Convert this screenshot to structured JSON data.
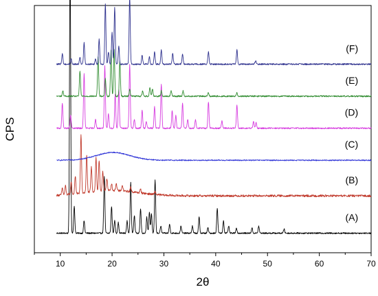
{
  "chart_data": {
    "type": "line",
    "title": "",
    "xlabel": "2θ",
    "ylabel": "CPS",
    "xlim": [
      5,
      70
    ],
    "xticks": [
      10,
      20,
      30,
      40,
      50,
      60,
      70
    ],
    "yticks_shown": false,
    "grid": false,
    "legend": "none",
    "series": [
      {
        "name": "(A)",
        "color": "#000000",
        "baseline": 0.0,
        "noise": 0.04,
        "peaks": [
          [
            11.9,
            8.0
          ],
          [
            12.7,
            0.75
          ],
          [
            14.6,
            0.35
          ],
          [
            18.5,
            1.6
          ],
          [
            19.9,
            0.75
          ],
          [
            20.5,
            0.35
          ],
          [
            21.2,
            0.3
          ],
          [
            22.9,
            0.35
          ],
          [
            23.6,
            1.45
          ],
          [
            24.3,
            0.5
          ],
          [
            25.5,
            0.7
          ],
          [
            26.7,
            0.45
          ],
          [
            27.2,
            0.6
          ],
          [
            27.6,
            0.55
          ],
          [
            28.3,
            1.5
          ],
          [
            29.4,
            0.2
          ],
          [
            31.1,
            0.25
          ],
          [
            33.3,
            0.2
          ],
          [
            35.5,
            0.2
          ],
          [
            36.8,
            0.45
          ],
          [
            38.5,
            0.15
          ],
          [
            40.3,
            0.7
          ],
          [
            41.5,
            0.35
          ],
          [
            42.5,
            0.2
          ],
          [
            44.0,
            0.15
          ],
          [
            47.0,
            0.15
          ],
          [
            48.3,
            0.2
          ],
          [
            53.2,
            0.12
          ]
        ]
      },
      {
        "name": "(B)",
        "color": "#c0392b",
        "baseline": 1.05,
        "noise": 0.06,
        "hump": {
          "center": 20.0,
          "width": 5.0,
          "height": 0.15
        },
        "peaks": [
          [
            10.4,
            0.2
          ],
          [
            11.0,
            0.25
          ],
          [
            12.1,
            0.35
          ],
          [
            12.9,
            0.5
          ],
          [
            14.0,
            1.65
          ],
          [
            15.1,
            1.05
          ],
          [
            16.0,
            0.7
          ],
          [
            16.9,
            0.95
          ],
          [
            17.5,
            0.85
          ],
          [
            18.2,
            0.55
          ],
          [
            19.0,
            0.35
          ],
          [
            19.9,
            0.2
          ],
          [
            20.8,
            0.2
          ],
          [
            22.0,
            0.15
          ],
          [
            23.6,
            0.12
          ],
          [
            25.5,
            0.1
          ],
          [
            28.3,
            0.08
          ]
        ]
      },
      {
        "name": "(C)",
        "color": "#2a2fd6",
        "baseline": 2.05,
        "noise": 0.03,
        "hump": {
          "center": 20.2,
          "width": 3.2,
          "height": 0.22
        },
        "peaks": []
      },
      {
        "name": "(D)",
        "color": "#d63adf",
        "baseline": 2.95,
        "noise": 0.04,
        "peaks": [
          [
            10.4,
            0.7
          ],
          [
            12.0,
            0.35
          ],
          [
            14.6,
            1.55
          ],
          [
            16.8,
            0.25
          ],
          [
            18.6,
            1.75
          ],
          [
            19.3,
            0.4
          ],
          [
            20.6,
            0.95
          ],
          [
            21.3,
            1.1
          ],
          [
            23.4,
            1.8
          ],
          [
            24.3,
            0.25
          ],
          [
            25.8,
            0.5
          ],
          [
            26.6,
            0.2
          ],
          [
            28.2,
            0.6
          ],
          [
            29.5,
            1.25
          ],
          [
            31.6,
            0.5
          ],
          [
            32.3,
            0.35
          ],
          [
            33.6,
            0.7
          ],
          [
            34.6,
            0.25
          ],
          [
            36.1,
            0.25
          ],
          [
            38.6,
            0.75
          ],
          [
            41.2,
            0.2
          ],
          [
            44.1,
            0.65
          ],
          [
            47.3,
            0.2
          ],
          [
            47.8,
            0.15
          ]
        ]
      },
      {
        "name": "(E)",
        "color": "#2e8b2e",
        "baseline": 3.85,
        "noise": 0.04,
        "peaks": [
          [
            10.5,
            0.15
          ],
          [
            13.8,
            0.7
          ],
          [
            17.3,
            1.1
          ],
          [
            18.7,
            0.5
          ],
          [
            19.8,
            1.3
          ],
          [
            20.4,
            1.3
          ],
          [
            21.5,
            1.0
          ],
          [
            23.4,
            0.2
          ],
          [
            25.9,
            0.15
          ],
          [
            27.3,
            0.25
          ],
          [
            27.8,
            0.2
          ],
          [
            29.5,
            0.15
          ],
          [
            31.4,
            0.15
          ],
          [
            33.7,
            0.15
          ],
          [
            38.6,
            0.1
          ],
          [
            44.1,
            0.1
          ]
        ]
      },
      {
        "name": "(F)",
        "color": "#2b2e8c",
        "baseline": 4.75,
        "noise": 0.04,
        "peaks": [
          [
            10.4,
            0.3
          ],
          [
            12.1,
            0.15
          ],
          [
            13.8,
            0.2
          ],
          [
            14.6,
            0.6
          ],
          [
            16.8,
            0.15
          ],
          [
            17.5,
            0.7
          ],
          [
            18.7,
            1.7
          ],
          [
            19.3,
            0.35
          ],
          [
            20.0,
            0.9
          ],
          [
            20.5,
            1.6
          ],
          [
            21.3,
            0.5
          ],
          [
            23.4,
            1.9
          ],
          [
            25.8,
            0.25
          ],
          [
            27.2,
            0.2
          ],
          [
            28.2,
            0.35
          ],
          [
            29.5,
            0.4
          ],
          [
            31.7,
            0.3
          ],
          [
            33.6,
            0.3
          ],
          [
            38.6,
            0.35
          ],
          [
            44.1,
            0.4
          ],
          [
            47.7,
            0.1
          ]
        ]
      }
    ]
  }
}
